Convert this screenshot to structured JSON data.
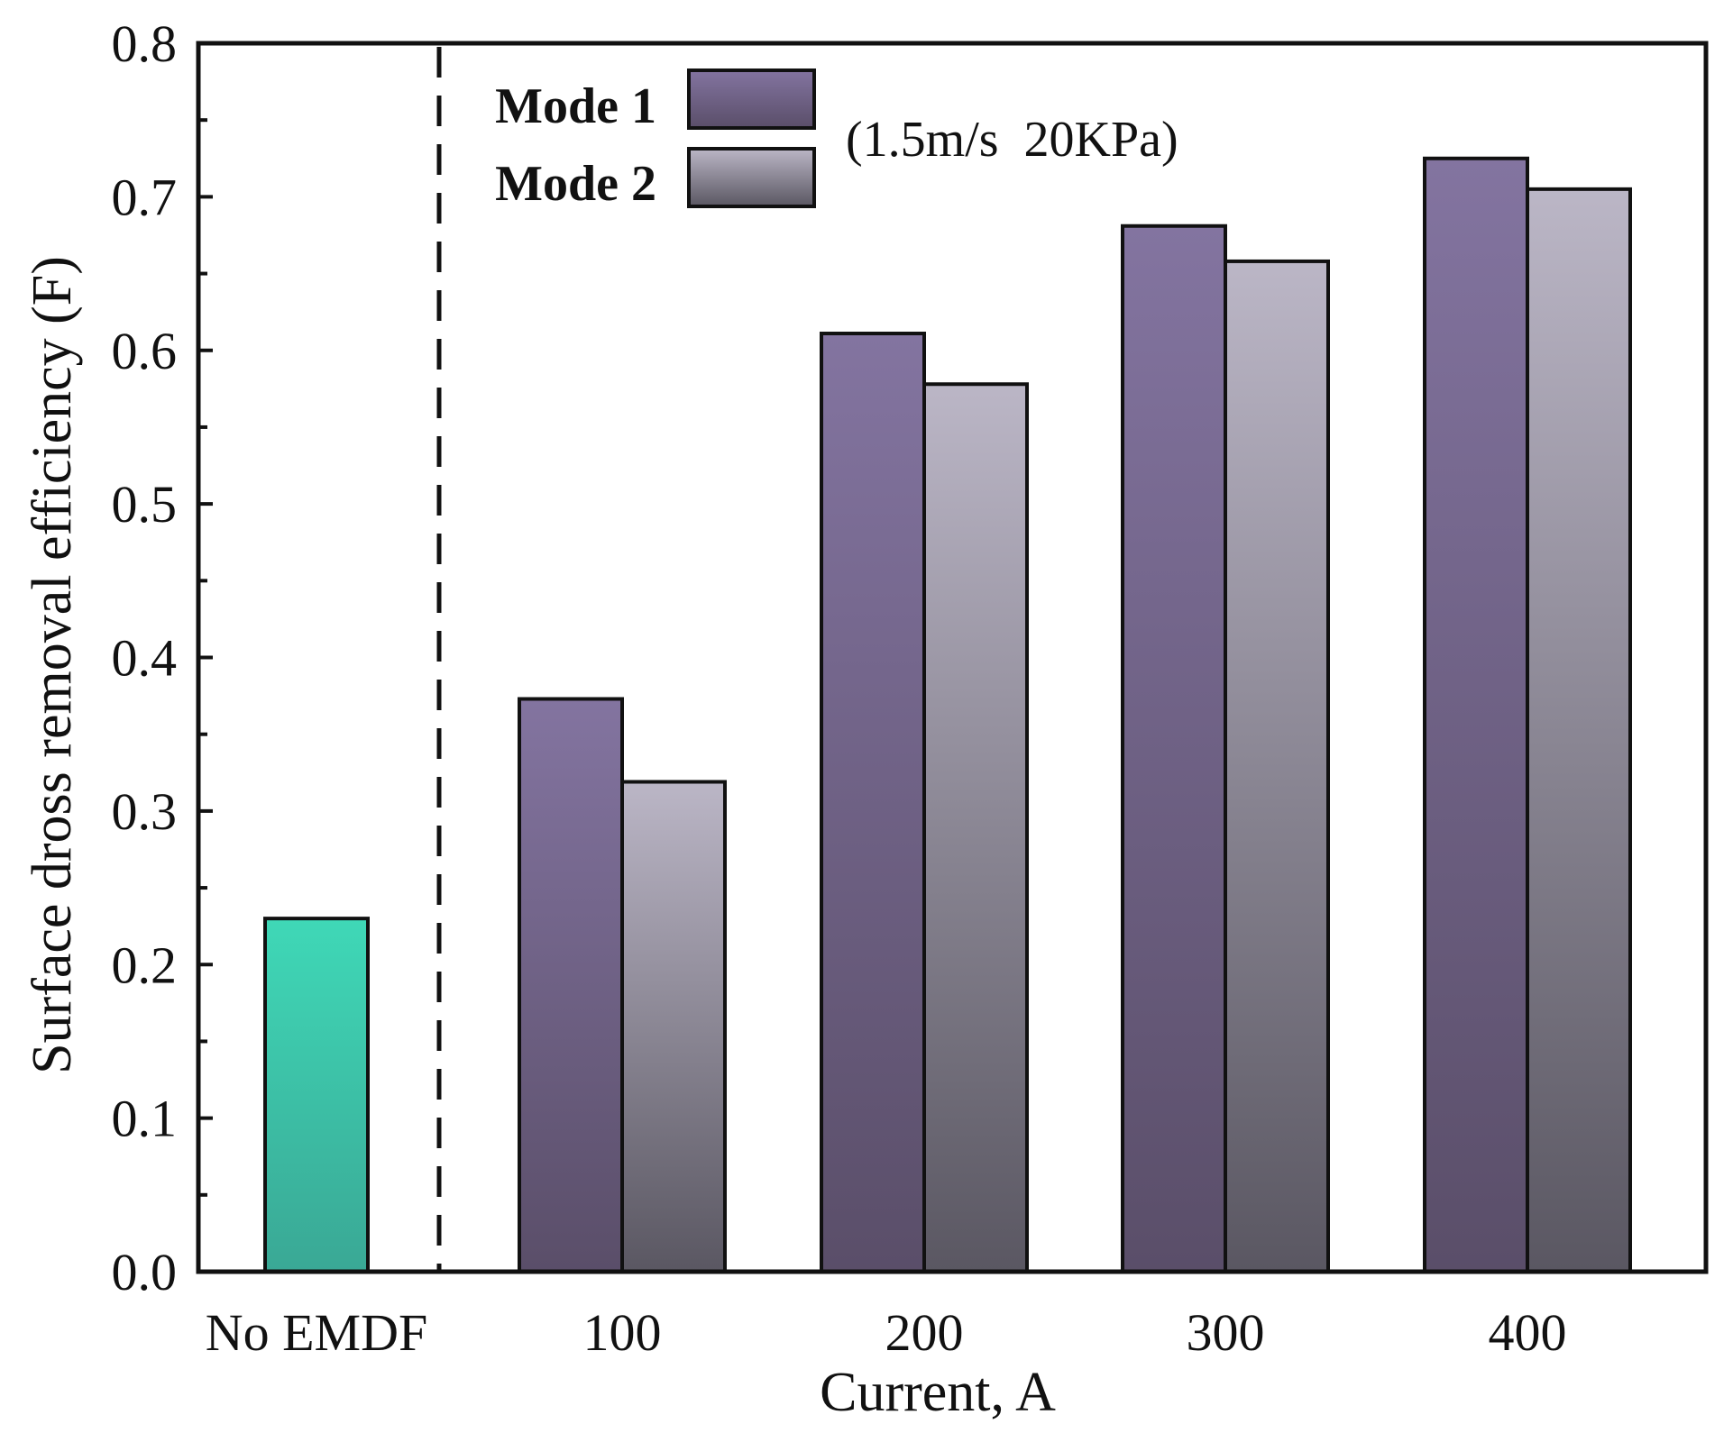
{
  "chart_data": {
    "type": "bar",
    "title": "",
    "xlabel": "Current, A",
    "ylabel": "Surface dross removal efficiency (F)",
    "ylim": [
      0,
      0.8
    ],
    "yticks": [
      "0.0",
      "0.1",
      "0.2",
      "0.3",
      "0.4",
      "0.5",
      "0.6",
      "0.7",
      "0.8"
    ],
    "categories": [
      "No EMDF",
      "100",
      "200",
      "300",
      "400"
    ],
    "baseline": {
      "category": "No EMDF",
      "value": 0.23,
      "color": "#3cc4a8"
    },
    "series": [
      {
        "name": "Mode 1",
        "values": [
          null,
          0.373,
          0.611,
          0.681,
          0.725
        ],
        "color_top": "#8374a0",
        "color_bottom": "#5a4e69"
      },
      {
        "name": "Mode 2",
        "values": [
          null,
          0.319,
          0.578,
          0.658,
          0.705
        ],
        "color_top": "#bbb6c6",
        "color_bottom": "#5a5762"
      }
    ],
    "legend_position": "top-left",
    "annotation": "(1.5m/s  20KPa)",
    "grid": false
  }
}
